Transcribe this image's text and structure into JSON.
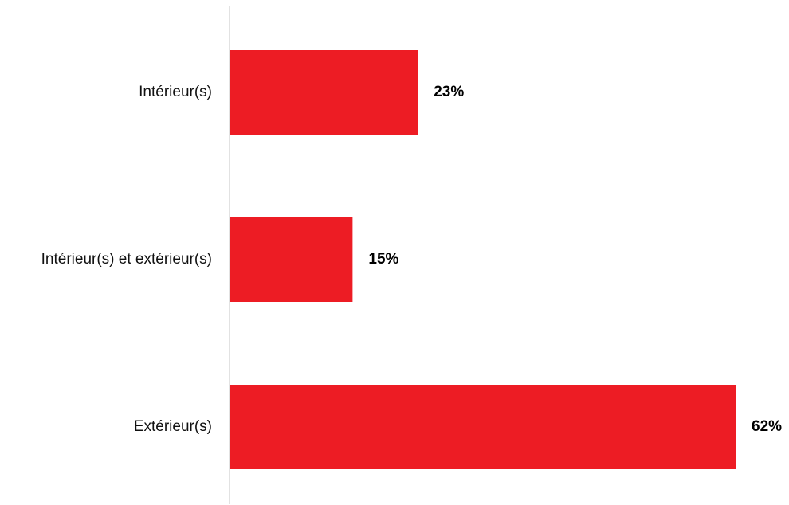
{
  "chart_data": {
    "type": "bar",
    "orientation": "horizontal",
    "categories": [
      "Intérieur(s)",
      "Intérieur(s) et extérieur(s)",
      "Extérieur(s)"
    ],
    "values": [
      23,
      15,
      62
    ],
    "value_labels": [
      "23%",
      "15%",
      "62%"
    ],
    "unit": "%",
    "xlim": [
      0,
      62
    ],
    "grid": false,
    "legend": "none",
    "bar_color": "#ED1C24",
    "axis_color": "#D9D9D9"
  }
}
